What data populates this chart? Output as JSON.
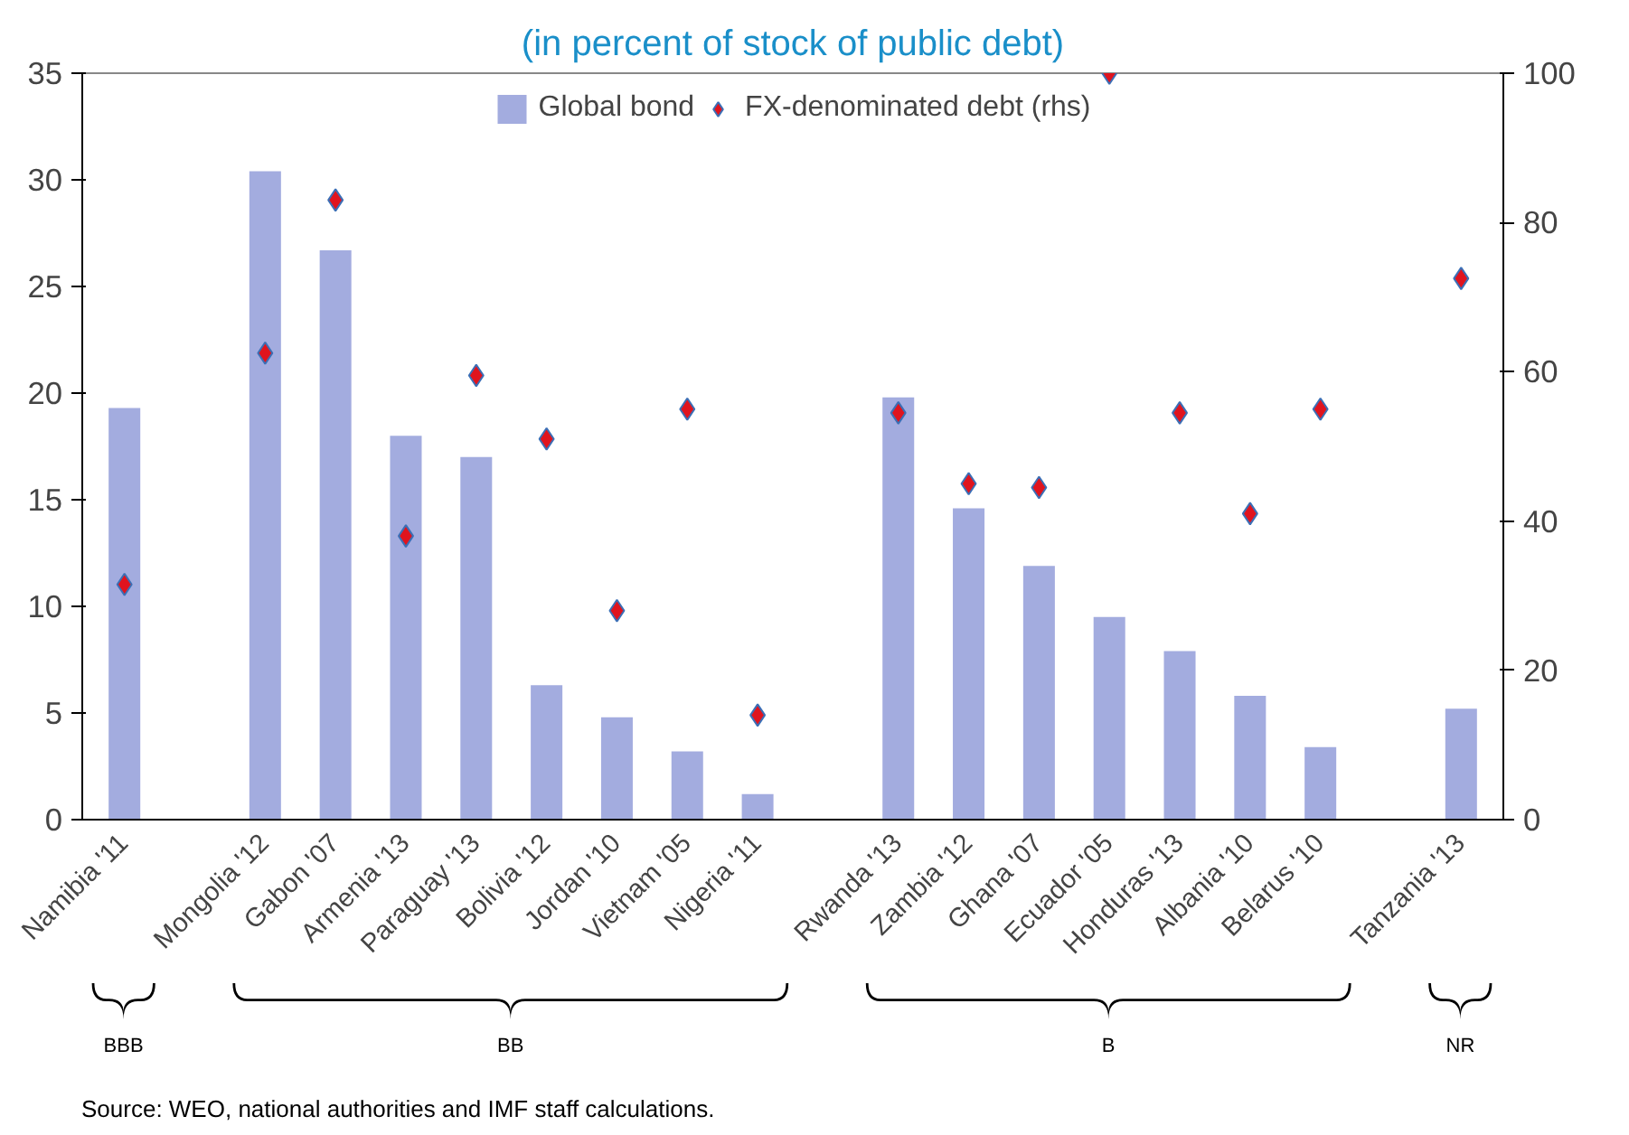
{
  "chart_data": {
    "type": "bar",
    "title": "(in percent of stock of public debt)",
    "categories": [
      "Namibia '11",
      null,
      "Mongolia '12",
      "Gabon '07",
      "Armenia '13",
      "Paraguay '13",
      "Bolivia '12",
      "Jordan '10",
      "Vietnam '05",
      "Nigeria '11",
      null,
      "Rwanda '13",
      "Zambia '12",
      "Ghana '07",
      "Ecuador '05",
      "Honduras '13",
      "Albania '10",
      "Belarus '10",
      null,
      "Tanzania '13"
    ],
    "series": [
      {
        "name": "Global bond",
        "color": "#a3acdf",
        "values": [
          19.3,
          null,
          30.4,
          26.7,
          18.0,
          17.0,
          6.3,
          4.8,
          3.2,
          1.2,
          null,
          19.8,
          14.6,
          11.9,
          9.5,
          7.9,
          5.8,
          3.4,
          null,
          5.2
        ]
      },
      {
        "name": "FX-denominated debt (rhs)",
        "type": "scatter",
        "axis": "y2",
        "color": "#e0141e",
        "values": [
          31.5,
          null,
          62.5,
          83,
          38,
          59.5,
          51,
          28,
          55,
          14,
          null,
          54.5,
          45,
          44.5,
          100,
          54.5,
          41,
          55,
          null,
          72.5
        ]
      }
    ],
    "ylim": [
      0,
      35
    ],
    "yticks": [
      0,
      5,
      10,
      15,
      20,
      25,
      30,
      35
    ],
    "y2lim": [
      0,
      100
    ],
    "y2ticks": [
      0,
      20,
      40,
      60,
      80,
      100
    ],
    "marker": "diamond",
    "grid": false,
    "legend": "top",
    "annotations": [
      "BBB",
      "BB",
      "B",
      "NR",
      "Source: WEO, national authorities and IMF staff calculations."
    ]
  }
}
